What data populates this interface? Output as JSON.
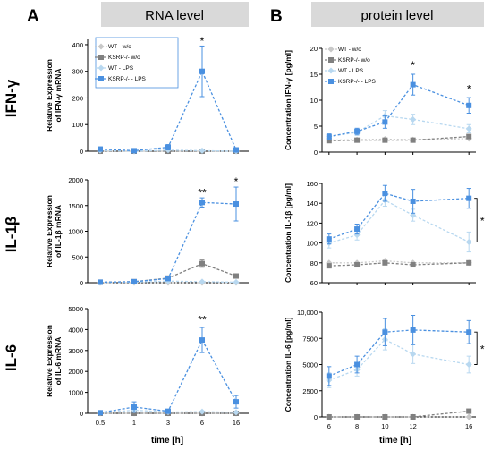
{
  "figure": {
    "panel_a_letter": "A",
    "panel_b_letter": "B",
    "header_a": "RNA level",
    "header_b": "protein level",
    "row_labels": [
      "IFN-γ",
      "IL-1β",
      "IL-6"
    ],
    "xlabel": "time [h]",
    "legend_rna": [
      "WT - w/o",
      "KSRP-/- w/o",
      "WT - LPS",
      "KSRP-/- - LPS"
    ],
    "legend_protein": [
      "WT - w/o",
      "KSRP-/- w/o",
      "WT - LPS",
      "KSRP-/- - LPS"
    ]
  },
  "colors": {
    "wt_wo": "#c8c8c8",
    "ksrp_wo": "#808080",
    "wt_lps": "#b8d8f0",
    "ksrp_lps": "#4a90e0",
    "header_bg": "#d9d9d9"
  },
  "chart_data": [
    {
      "type": "line",
      "panel": "A-IFN-g",
      "ylabel": "Relative Expression of IFN-γ mRNA",
      "categories": [
        "0.5",
        "1",
        "3",
        "6",
        "16"
      ],
      "yticks": [
        0,
        100,
        200,
        300,
        400
      ],
      "ylim": [
        0,
        420
      ],
      "series": [
        {
          "name": "WT - w/o",
          "values": [
            0,
            0,
            0,
            0,
            0
          ]
        },
        {
          "name": "KSRP-/- w/o",
          "values": [
            0,
            0,
            0,
            0,
            0
          ]
        },
        {
          "name": "WT - LPS",
          "values": [
            3,
            0,
            4,
            2,
            0
          ]
        },
        {
          "name": "KSRP-/- - LPS",
          "values": [
            8,
            2,
            15,
            300,
            5
          ],
          "err": [
            8,
            3,
            10,
            95,
            4
          ]
        }
      ],
      "annotations": [
        {
          "x": "6",
          "y": 400,
          "text": "*"
        }
      ]
    },
    {
      "type": "line",
      "panel": "A-IL-1b",
      "ylabel": "Relative Expression of IL-1β mRNA",
      "categories": [
        "0.5",
        "1",
        "3",
        "6",
        "16"
      ],
      "yticks": [
        0,
        500,
        1000,
        1500,
        2000
      ],
      "ylim": [
        0,
        2000
      ],
      "series": [
        {
          "name": "WT - w/o",
          "values": [
            0,
            0,
            0,
            0,
            0
          ]
        },
        {
          "name": "KSRP-/- w/o",
          "values": [
            10,
            20,
            90,
            370,
            130
          ],
          "err": [
            5,
            10,
            20,
            70,
            20
          ]
        },
        {
          "name": "WT - LPS",
          "values": [
            5,
            10,
            30,
            20,
            10
          ]
        },
        {
          "name": "KSRP-/- - LPS",
          "values": [
            10,
            20,
            80,
            1560,
            1530
          ],
          "err": [
            5,
            10,
            20,
            90,
            330
          ]
        }
      ],
      "annotations": [
        {
          "x": "6",
          "y": 1680,
          "text": "**"
        },
        {
          "x": "16",
          "y": 1900,
          "text": "*"
        }
      ]
    },
    {
      "type": "line",
      "panel": "A-IL-6",
      "ylabel": "Relative Expression of IL-6 mRNA",
      "categories": [
        "0.5",
        "1",
        "3",
        "6",
        "16"
      ],
      "yticks": [
        0,
        1000,
        2000,
        3000,
        4000,
        5000
      ],
      "ylim": [
        0,
        5000
      ],
      "series": [
        {
          "name": "WT - w/o",
          "values": [
            0,
            0,
            0,
            0,
            0
          ]
        },
        {
          "name": "KSRP-/- w/o",
          "values": [
            0,
            0,
            0,
            0,
            0
          ]
        },
        {
          "name": "WT - LPS",
          "values": [
            20,
            150,
            60,
            80,
            50
          ]
        },
        {
          "name": "KSRP-/- - LPS",
          "values": [
            30,
            300,
            100,
            3500,
            550
          ],
          "err": [
            20,
            250,
            80,
            600,
            300
          ]
        }
      ],
      "annotations": [
        {
          "x": "6",
          "y": 4300,
          "text": "**"
        }
      ]
    },
    {
      "type": "line",
      "panel": "B-IFN-g",
      "ylabel": "Concentration IFN-γ [pg/ml]",
      "x": [
        6,
        8,
        10,
        12,
        16
      ],
      "xticks": [
        6,
        8,
        10,
        12,
        16
      ],
      "xlim": [
        5.5,
        16.5
      ],
      "yticks": [
        0,
        5,
        10,
        15,
        20
      ],
      "ylim": [
        0,
        20
      ],
      "series": [
        {
          "name": "WT - w/o",
          "values": [
            2.3,
            2.4,
            2.5,
            2.4,
            2.6
          ]
        },
        {
          "name": "KSRP-/- w/o",
          "values": [
            2.2,
            2.3,
            2.3,
            2.3,
            3.0
          ]
        },
        {
          "name": "WT - LPS",
          "values": [
            3.0,
            3.8,
            7.0,
            6.3,
            4.5
          ],
          "err": [
            0.5,
            0.6,
            1.0,
            1.0,
            0.8
          ]
        },
        {
          "name": "KSRP-/- - LPS",
          "values": [
            3.0,
            4.0,
            5.8,
            13.0,
            9.0
          ],
          "err": [
            0.5,
            0.6,
            1.2,
            2.0,
            1.5
          ]
        }
      ],
      "annotations": [
        {
          "x": 12,
          "y": 16.0,
          "text": "*"
        },
        {
          "x": 16,
          "y": 11.5,
          "text": "*"
        }
      ]
    },
    {
      "type": "line",
      "panel": "B-IL-1b",
      "ylabel": "Concentration IL-1β [pg/ml]",
      "x": [
        6,
        8,
        10,
        12,
        16
      ],
      "xticks": [
        6,
        8,
        10,
        12,
        16
      ],
      "xlim": [
        5.5,
        16.5
      ],
      "yticks": [
        60,
        80,
        100,
        120,
        140,
        160
      ],
      "ylim": [
        60,
        160
      ],
      "series": [
        {
          "name": "WT - w/o",
          "values": [
            80,
            80,
            82,
            80,
            80
          ]
        },
        {
          "name": "KSRP-/- w/o",
          "values": [
            77,
            78,
            80,
            78,
            80
          ]
        },
        {
          "name": "WT - LPS",
          "values": [
            100,
            108,
            143,
            128,
            101
          ],
          "err": [
            5,
            5,
            6,
            6,
            10
          ]
        },
        {
          "name": "KSRP-/- - LPS",
          "values": [
            104,
            114,
            150,
            142,
            145
          ],
          "err": [
            5,
            5,
            8,
            12,
            10
          ]
        }
      ],
      "annotations": [
        {
          "text": "*",
          "bracket": [
            16,
            145,
            101
          ]
        }
      ]
    },
    {
      "type": "line",
      "panel": "B-IL-6",
      "ylabel": "Concentration IL-6 [pg/ml]",
      "x": [
        6,
        8,
        10,
        12,
        16
      ],
      "xticks": [
        6,
        8,
        10,
        12,
        16
      ],
      "xlim": [
        5.5,
        16.5
      ],
      "yticks": [
        0,
        2500,
        5000,
        7500,
        10000
      ],
      "ytick_labels": [
        "0",
        "2500",
        "5000",
        "7500",
        "10,000"
      ],
      "ylim": [
        0,
        10000
      ],
      "series": [
        {
          "name": "WT - w/o",
          "values": [
            0,
            0,
            0,
            0,
            0
          ]
        },
        {
          "name": "KSRP-/- w/o",
          "values": [
            0,
            0,
            0,
            0,
            550
          ]
        },
        {
          "name": "WT - LPS",
          "values": [
            3500,
            4500,
            7400,
            6000,
            5000
          ],
          "err": [
            700,
            600,
            1000,
            900,
            800
          ]
        },
        {
          "name": "KSRP-/- - LPS",
          "values": [
            3900,
            5000,
            8100,
            8300,
            8100
          ],
          "err": [
            900,
            800,
            1300,
            1400,
            1100
          ]
        }
      ],
      "annotations": [
        {
          "text": "*",
          "bracket": [
            16,
            8100,
            5000
          ]
        }
      ]
    }
  ]
}
